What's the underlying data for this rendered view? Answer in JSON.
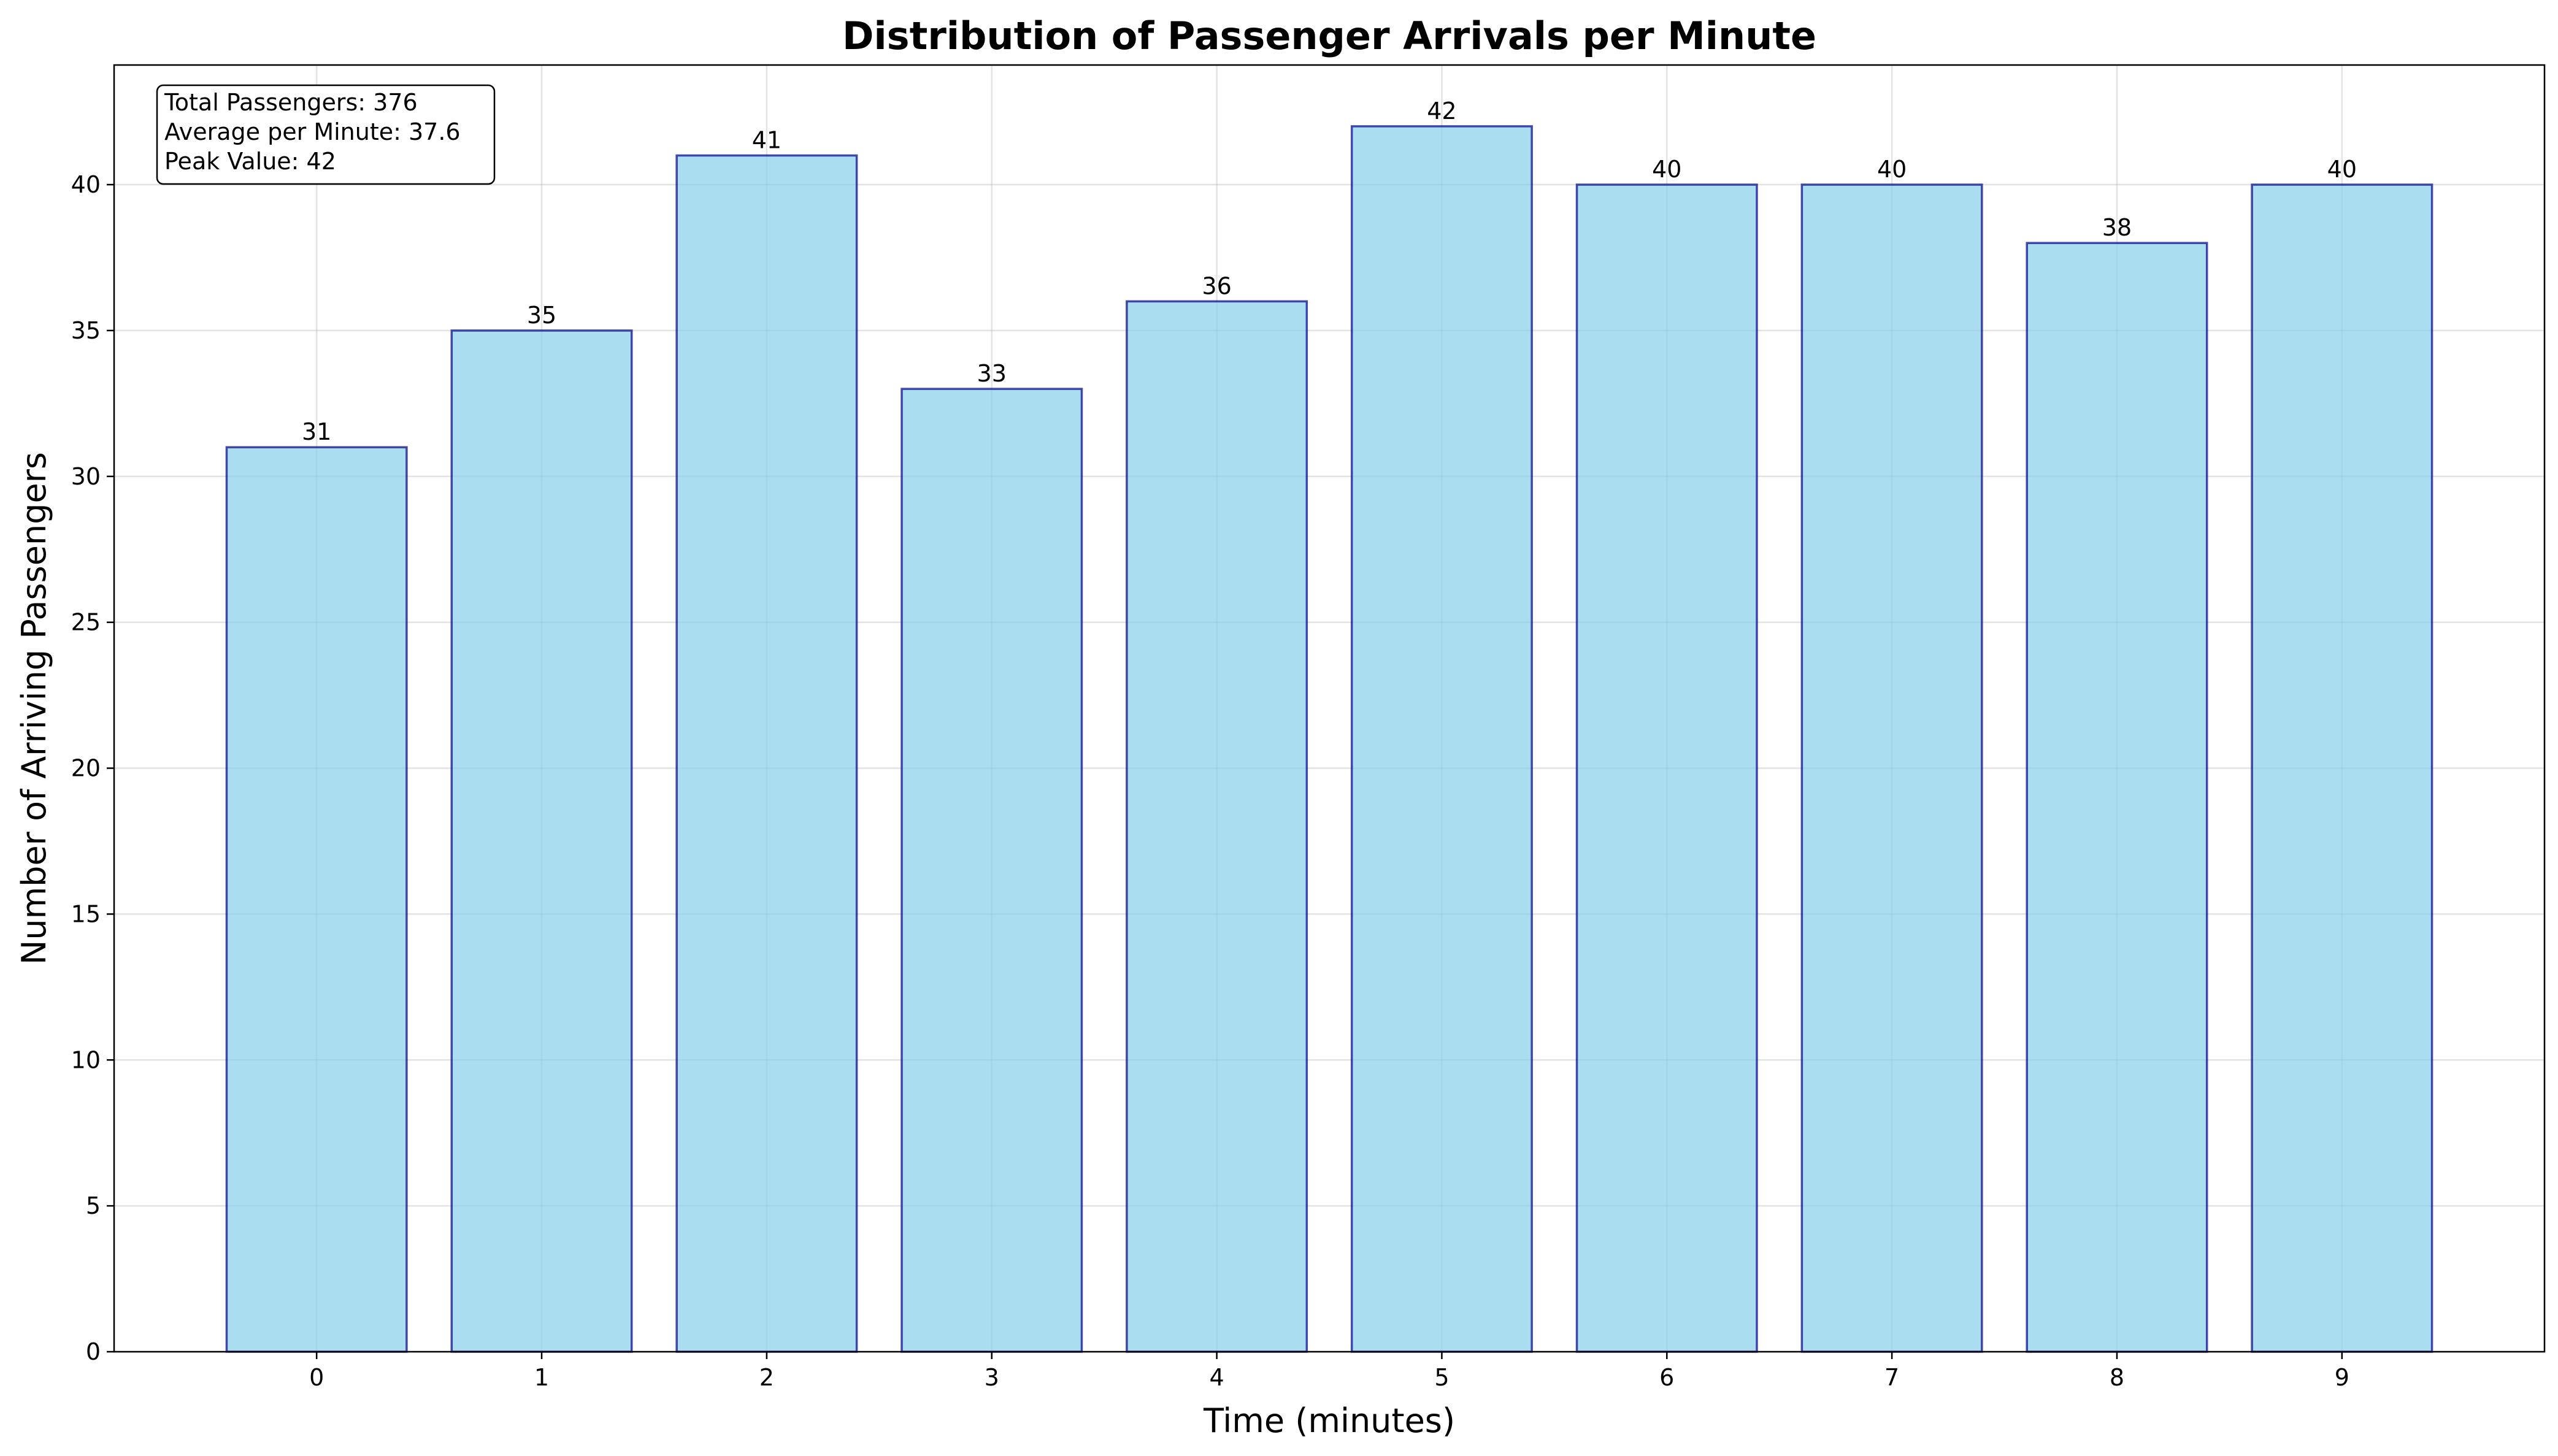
{
  "chart_data": {
    "type": "bar",
    "title": "Distribution of Passenger Arrivals per Minute",
    "xlabel": "Time (minutes)",
    "ylabel": "Number of Arriving Passengers",
    "categories": [
      "0",
      "1",
      "2",
      "3",
      "4",
      "5",
      "6",
      "7",
      "8",
      "9"
    ],
    "values": [
      31,
      35,
      41,
      33,
      36,
      42,
      40,
      40,
      38,
      40
    ],
    "ylim": [
      0,
      44.1
    ],
    "yticks": [
      0,
      5,
      10,
      15,
      20,
      25,
      30,
      35,
      40
    ],
    "grid": true,
    "bar_color": "#87ceeb",
    "bar_edge_color": "#00008b",
    "annotation": {
      "position": "top-left",
      "lines": [
        "Total Passengers: 376",
        "Average per Minute: 37.6",
        "Peak Value: 42"
      ]
    }
  }
}
